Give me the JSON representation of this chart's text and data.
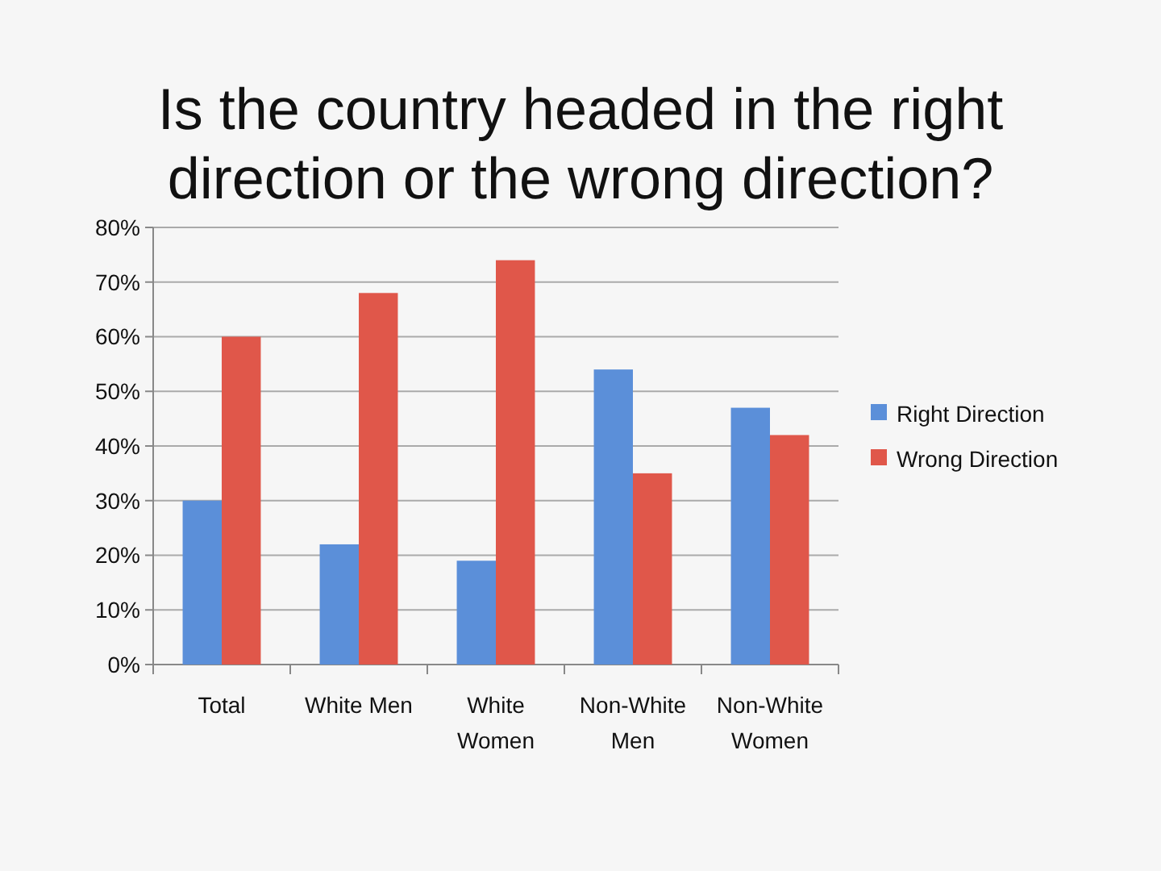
{
  "chart_data": {
    "type": "bar",
    "title": "Is the country headed in the right direction or the wrong direction?",
    "categories": [
      "Total",
      "White Men",
      "White Women",
      "Non-White Men",
      "Non-White Women"
    ],
    "series": [
      {
        "name": "Right Direction",
        "color": "#5b8fd9",
        "values": [
          30,
          22,
          19,
          54,
          47
        ]
      },
      {
        "name": "Wrong Direction",
        "color": "#e0574a",
        "values": [
          60,
          68,
          74,
          35,
          42
        ]
      }
    ],
    "ylim": [
      0,
      80
    ],
    "yticks": [
      {
        "value": 0,
        "label": "0%"
      },
      {
        "value": 10,
        "label": "10%"
      },
      {
        "value": 20,
        "label": "20%"
      },
      {
        "value": 30,
        "label": "30%"
      },
      {
        "value": 40,
        "label": "40%"
      },
      {
        "value": 50,
        "label": "50%"
      },
      {
        "value": 60,
        "label": "60%"
      },
      {
        "value": 70,
        "label": "70%"
      },
      {
        "value": 80,
        "label": "80%"
      }
    ],
    "grid": "y",
    "legend": "right"
  }
}
